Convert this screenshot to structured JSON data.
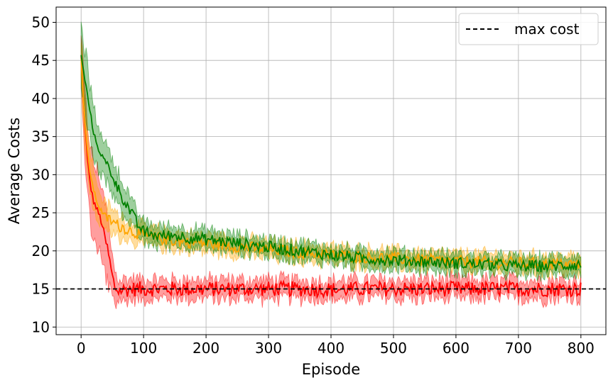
{
  "chart_data": {
    "type": "line",
    "title": "",
    "xlabel": "Episode",
    "ylabel": "Average Costs",
    "xlim": [
      -40,
      840
    ],
    "ylim": [
      9,
      52
    ],
    "xticks": [
      0,
      100,
      200,
      300,
      400,
      500,
      600,
      700,
      800
    ],
    "yticks": [
      10,
      15,
      20,
      25,
      30,
      35,
      40,
      45,
      50
    ],
    "grid": true,
    "legend_position": "top-right",
    "reference_line": {
      "label": "max cost",
      "y": 15,
      "style": "dashed",
      "color": "#000000"
    },
    "series": [
      {
        "color": "#ff0000",
        "band_color": "#ff0000",
        "x": [
          0,
          5,
          10,
          15,
          20,
          25,
          30,
          35,
          40,
          45,
          50,
          55,
          60,
          70,
          80,
          100,
          150,
          200,
          250,
          300,
          350,
          400,
          450,
          500,
          550,
          600,
          650,
          700,
          750,
          800
        ],
        "mean": [
          45.5,
          38,
          32,
          28.5,
          26.5,
          25.5,
          24.5,
          23,
          21,
          19,
          16.5,
          15,
          14.8,
          14.9,
          15,
          15,
          15,
          15,
          15,
          15,
          15,
          14.9,
          15,
          15,
          15,
          15,
          15,
          15,
          15,
          15
        ],
        "spread": [
          3,
          4,
          4.5,
          5,
          5,
          5,
          5,
          5,
          4.5,
          4,
          3,
          2,
          1.6,
          1.4,
          1.3,
          1.2,
          1.2,
          1.2,
          1.2,
          1.2,
          1.2,
          1.2,
          1.2,
          1.2,
          1.2,
          1.2,
          1.2,
          1.2,
          1.2,
          1.2
        ],
        "noise": 1.0
      },
      {
        "color": "#ffa500",
        "band_color": "#ffa500",
        "x": [
          0,
          5,
          10,
          15,
          20,
          25,
          30,
          40,
          50,
          60,
          70,
          80,
          100,
          150,
          200,
          250,
          300,
          350,
          400,
          450,
          500,
          550,
          600,
          650,
          700,
          750,
          800
        ],
        "mean": [
          45.5,
          38,
          33,
          30,
          28,
          26.5,
          25.5,
          24.5,
          23.8,
          23.3,
          23,
          22.6,
          22,
          21.3,
          21,
          20.6,
          20.2,
          19.8,
          19.5,
          19.2,
          19,
          18.8,
          18.6,
          18.5,
          18.4,
          18.3,
          18.2
        ],
        "spread": [
          3,
          3.5,
          3.5,
          3,
          2.5,
          2.2,
          2,
          1.8,
          1.6,
          1.5,
          1.4,
          1.3,
          1.2,
          1.1,
          1.1,
          1.1,
          1.1,
          1.1,
          1.1,
          1.1,
          1.1,
          1.1,
          1.1,
          1.1,
          1.1,
          1.1,
          1.1
        ],
        "noise": 0.8
      },
      {
        "color": "#008000",
        "band_color": "#008000",
        "x": [
          0,
          5,
          10,
          15,
          20,
          25,
          30,
          40,
          50,
          60,
          70,
          80,
          90,
          100,
          120,
          150,
          200,
          250,
          300,
          350,
          400,
          450,
          500,
          550,
          600,
          650,
          700,
          750,
          800
        ],
        "mean": [
          45.5,
          43,
          40.5,
          38,
          35.5,
          34,
          33,
          31.5,
          30,
          28,
          26.5,
          25,
          23.5,
          22.5,
          22,
          22,
          21.5,
          21,
          20.5,
          20,
          19.5,
          19,
          18.8,
          18.6,
          18.4,
          18.2,
          18,
          18,
          18.2
        ],
        "spread": [
          4,
          4,
          3.8,
          3.5,
          3.2,
          3,
          2.8,
          2.5,
          2.3,
          2.1,
          1.9,
          1.7,
          1.5,
          1.4,
          1.3,
          1.2,
          1.2,
          1.1,
          1.1,
          1.1,
          1.1,
          1.1,
          1.1,
          1.1,
          1.1,
          1.1,
          1.1,
          1.1,
          1.1
        ],
        "noise": 0.8
      }
    ]
  }
}
